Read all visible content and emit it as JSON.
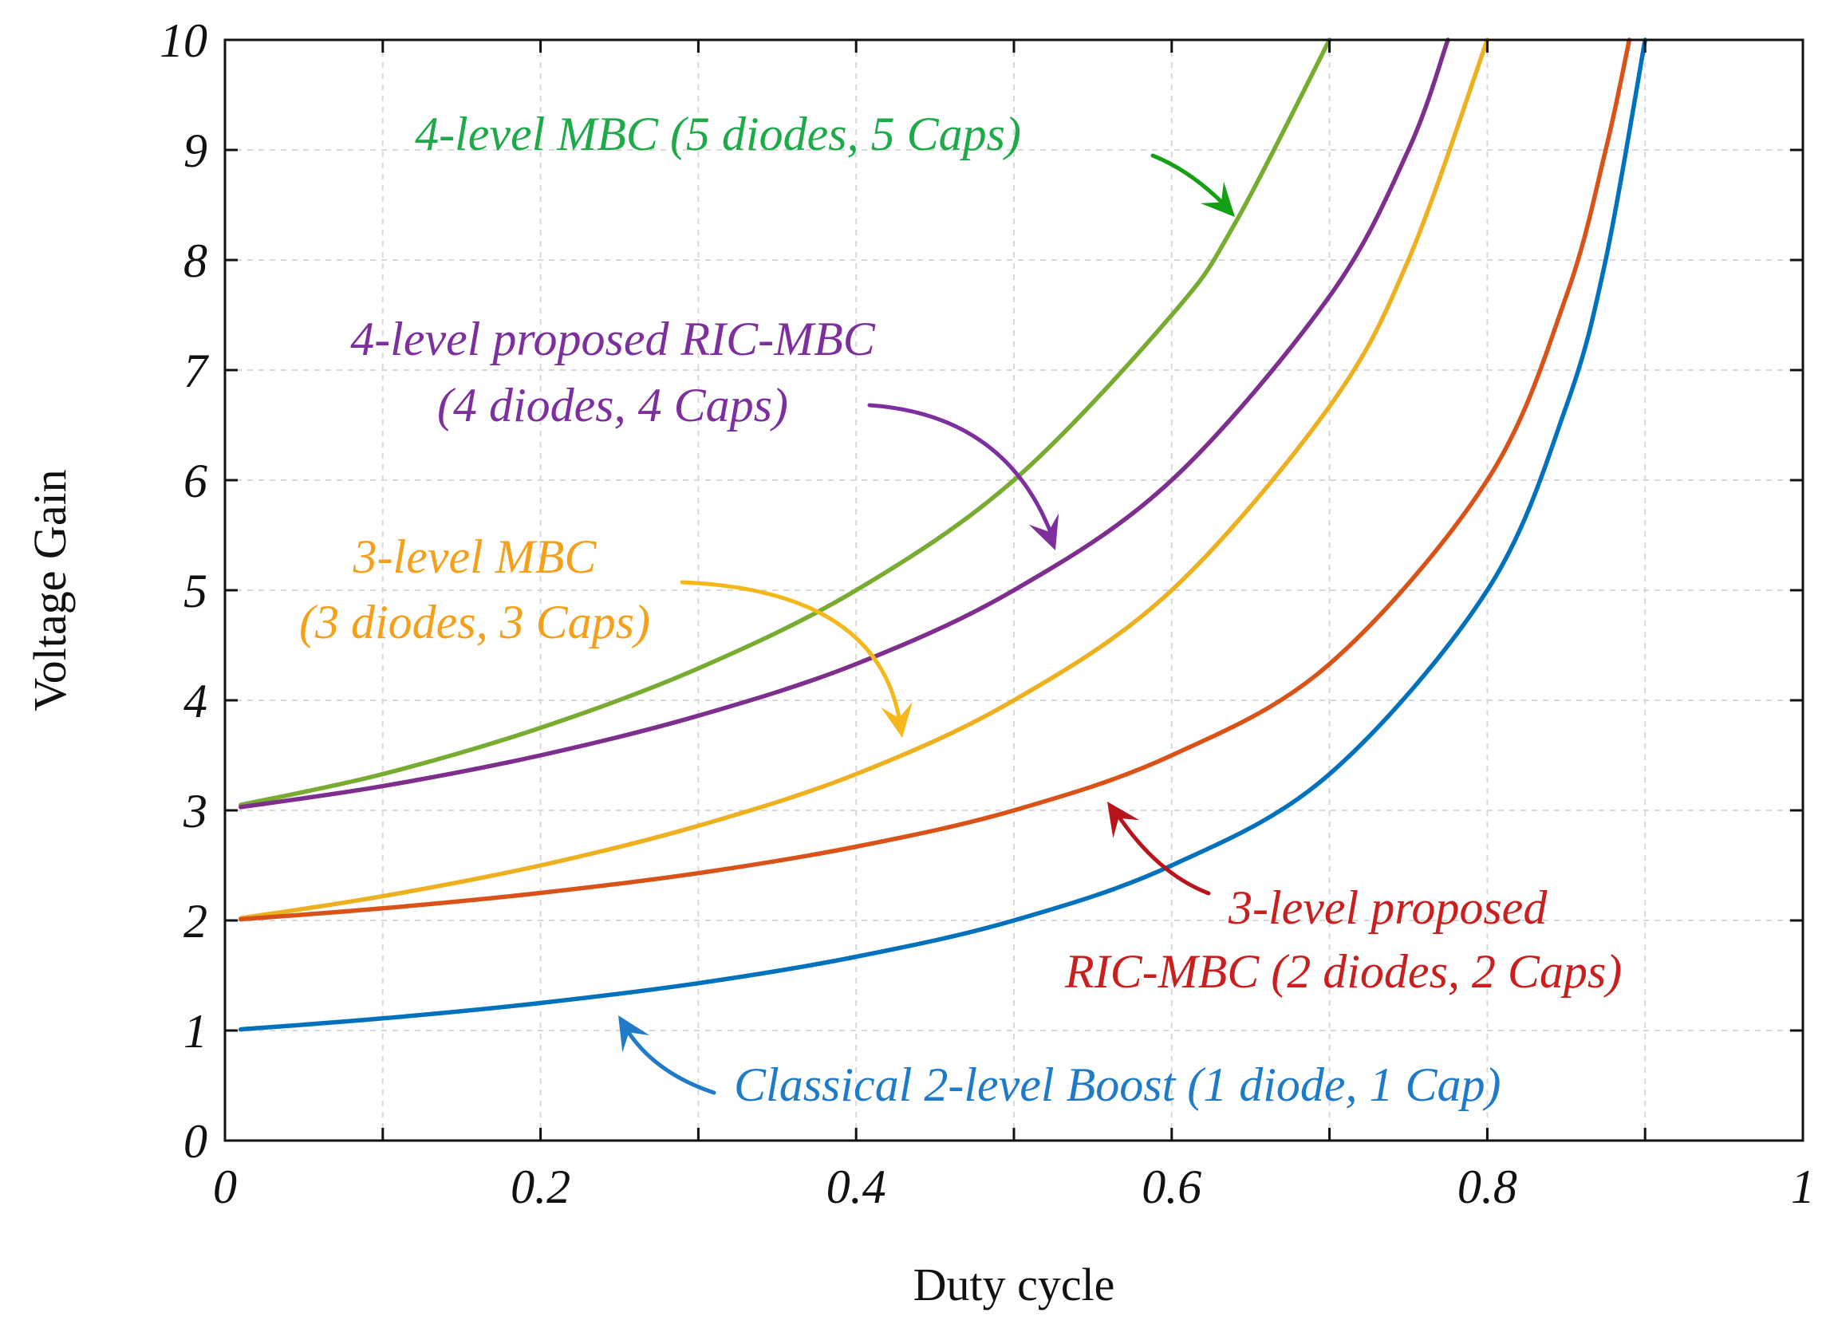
{
  "chart_data": {
    "type": "line",
    "title": "",
    "xlabel": "Duty cycle",
    "ylabel": "Voltage Gain",
    "xlim": [
      0,
      1
    ],
    "ylim": [
      0,
      10
    ],
    "grid": true,
    "x_ticks": [
      {
        "value": 0,
        "label": "0"
      },
      {
        "value": 0.2,
        "label": "0.2"
      },
      {
        "value": 0.4,
        "label": "0.4"
      },
      {
        "value": 0.6,
        "label": "0.6"
      },
      {
        "value": 0.8,
        "label": "0.8"
      },
      {
        "value": 1,
        "label": "1"
      }
    ],
    "y_ticks": [
      {
        "value": 0,
        "label": "0"
      },
      {
        "value": 1,
        "label": "1"
      },
      {
        "value": 2,
        "label": "2"
      },
      {
        "value": 3,
        "label": "3"
      },
      {
        "value": 4,
        "label": "4"
      },
      {
        "value": 5,
        "label": "5"
      },
      {
        "value": 6,
        "label": "6"
      },
      {
        "value": 7,
        "label": "7"
      },
      {
        "value": 8,
        "label": "8"
      },
      {
        "value": 9,
        "label": "9"
      },
      {
        "value": 10,
        "label": "10"
      }
    ],
    "x_minor_ticks": [
      0.1,
      0.3,
      0.5,
      0.7,
      0.9
    ],
    "series": [
      {
        "name": "4-level MBC (5 diodes, 5 Caps)",
        "color": "#77ac30",
        "x": [
          0.01,
          0.1,
          0.2,
          0.3,
          0.4,
          0.5,
          0.6,
          0.64,
          0.7
        ],
        "y": [
          3.05,
          3.33,
          3.75,
          4.29,
          5.0,
          6.0,
          7.5,
          8.33,
          10.0
        ]
      },
      {
        "name": "4-level proposed RIC-MBC (4 diodes, 4 Caps)",
        "color": "#7e2f8e",
        "x": [
          0.01,
          0.1,
          0.2,
          0.3,
          0.4,
          0.5,
          0.6,
          0.7,
          0.75,
          0.775
        ],
        "y": [
          3.03,
          3.22,
          3.5,
          3.86,
          4.33,
          5.0,
          6.0,
          7.67,
          9.0,
          10.0
        ]
      },
      {
        "name": "3-level MBC (3 diodes, 3 Caps)",
        "color": "#edb120",
        "x": [
          0.01,
          0.1,
          0.2,
          0.3,
          0.4,
          0.5,
          0.6,
          0.7,
          0.75,
          0.8
        ],
        "y": [
          2.02,
          2.22,
          2.5,
          2.86,
          3.33,
          4.0,
          5.0,
          6.67,
          8.0,
          10.0
        ]
      },
      {
        "name": "3-level proposed RIC-MBC (2 diodes, 2 Caps)",
        "color": "#d95319",
        "x": [
          0.01,
          0.1,
          0.2,
          0.3,
          0.4,
          0.5,
          0.6,
          0.7,
          0.8,
          0.85,
          0.875,
          0.89
        ],
        "y": [
          2.01,
          2.11,
          2.25,
          2.43,
          2.67,
          3.0,
          3.5,
          4.33,
          6.0,
          7.67,
          9.0,
          10.0
        ]
      },
      {
        "name": "Classical 2-level Boost (1 diode, 1 Cap)",
        "color": "#0072bd",
        "x": [
          0.01,
          0.1,
          0.2,
          0.3,
          0.4,
          0.5,
          0.6,
          0.7,
          0.8,
          0.85,
          0.875,
          0.9
        ],
        "y": [
          1.01,
          1.11,
          1.25,
          1.43,
          1.67,
          2.0,
          2.5,
          3.33,
          5.0,
          6.67,
          8.0,
          10.0
        ]
      }
    ],
    "annotations": [
      {
        "lines": [
          "4-level MBC (5 diodes, 5 Caps)"
        ],
        "color": "#1faa4a",
        "arrow_color": "#14a014"
      },
      {
        "lines": [
          "4-level proposed RIC-MBC",
          "(4 diodes, 4 Caps)"
        ],
        "color": "#7e2f9e",
        "arrow_color": "#7e2f9e"
      },
      {
        "lines": [
          "3-level MBC",
          "(3 diodes, 3 Caps)"
        ],
        "color": "#f5a01a",
        "arrow_color": "#f5b81a"
      },
      {
        "lines": [
          "3-level proposed",
          "RIC-MBC (2 diodes, 2 Caps)"
        ],
        "color": "#c8201e",
        "arrow_color": "#b8141e"
      },
      {
        "lines": [
          "Classical 2-level Boost (1 diode, 1 Cap)"
        ],
        "color": "#1f7ac8",
        "arrow_color": "#1f7ac8"
      }
    ]
  }
}
